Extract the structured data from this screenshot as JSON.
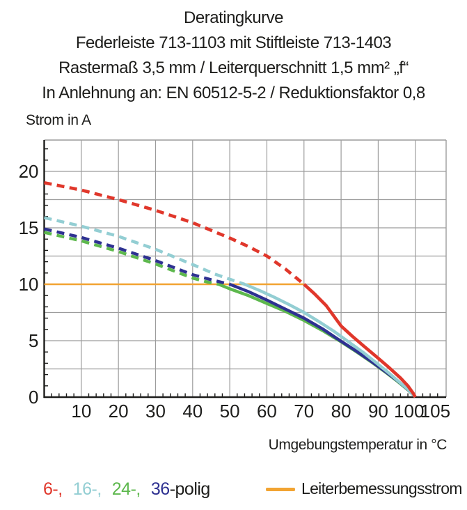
{
  "title": {
    "line1": "Deratingkurve",
    "line2": "Federleiste 713-1103 mit Stiftleiste 713-1403",
    "line3": "Rastermaß 3,5 mm / Leiterquerschnitt 1,5 mm² „f“",
    "line4": "In Anlehnung an: EN 60512-5-2 / Reduktionsfaktor 0,8"
  },
  "axes": {
    "y_caption": "Strom in A",
    "x_caption": "Umgebungstemperatur in °C"
  },
  "legend": {
    "items": [
      {
        "label": "6-,",
        "color": "#e0372b"
      },
      {
        "label": "16-,",
        "color": "#93ced3"
      },
      {
        "label": "24-,",
        "color": "#5db84d"
      },
      {
        "label": "36",
        "color": "#2e3191"
      }
    ],
    "suffix": "-polig",
    "line_label": "Leiterbemessungsstrom",
    "line_color": "#f2a432"
  },
  "colors": {
    "grid": "#9c9c9c",
    "axis": "#1d1d1b",
    "text": "#1d1d1b"
  },
  "chart_data": {
    "type": "line",
    "title": "Deratingkurve",
    "xlabel": "Umgebungstemperatur in °C",
    "ylabel": "Strom in A",
    "xlim": [
      0,
      108.3
    ],
    "ylim": [
      0,
      22.78
    ],
    "x_grid_step": 10,
    "y_grid_step": 2.5,
    "x_ticks": [
      {
        "v": 10
      },
      {
        "v": 20
      },
      {
        "v": 30
      },
      {
        "v": 40
      },
      {
        "v": 50
      },
      {
        "v": 60
      },
      {
        "v": 70
      },
      {
        "v": 80
      },
      {
        "v": 90
      },
      {
        "v": 100,
        "dx": -9
      },
      {
        "v": 105,
        "dx": 2
      }
    ],
    "y_ticks": [
      0,
      5,
      10,
      15,
      20
    ],
    "legend_position": "bottom",
    "series": [
      {
        "name": "Leiterbemessungsstrom",
        "color": "#f2a432",
        "width": 2.6,
        "dash_until": null,
        "points": [
          [
            0,
            10
          ],
          [
            70,
            10
          ]
        ]
      },
      {
        "name": "24-polig",
        "color": "#5db84d",
        "width": 4.4,
        "dash_until": 47,
        "points": [
          [
            0,
            14.6
          ],
          [
            10,
            13.85
          ],
          [
            20,
            12.9
          ],
          [
            30,
            11.8
          ],
          [
            40,
            10.55
          ],
          [
            44,
            10.2
          ],
          [
            47,
            10
          ],
          [
            50,
            9.6
          ],
          [
            55,
            9.0
          ],
          [
            60,
            8.3
          ],
          [
            65,
            7.6
          ],
          [
            70,
            6.8
          ],
          [
            75,
            5.9
          ],
          [
            80,
            4.9
          ],
          [
            84,
            4.05
          ],
          [
            88,
            3.15
          ],
          [
            92,
            2.2
          ],
          [
            95,
            1.45
          ],
          [
            98,
            0.65
          ],
          [
            99.5,
            0.2
          ],
          [
            100,
            0
          ]
        ]
      },
      {
        "name": "36-polig",
        "color": "#2e3191",
        "width": 4.4,
        "dash_until": 50,
        "points": [
          [
            0,
            14.9
          ],
          [
            10,
            14.15
          ],
          [
            20,
            13.2
          ],
          [
            30,
            12.1
          ],
          [
            40,
            10.85
          ],
          [
            45,
            10.4
          ],
          [
            50,
            10
          ],
          [
            55,
            9.35
          ],
          [
            60,
            8.6
          ],
          [
            65,
            7.8
          ],
          [
            70,
            7.0
          ],
          [
            75,
            6.05
          ],
          [
            80,
            4.95
          ],
          [
            84,
            4.1
          ],
          [
            88,
            3.2
          ],
          [
            92,
            2.25
          ],
          [
            95,
            1.5
          ],
          [
            98,
            0.68
          ],
          [
            99.5,
            0.2
          ],
          [
            100,
            0
          ]
        ]
      },
      {
        "name": "16-polig",
        "color": "#93ced3",
        "width": 4.4,
        "dash_until": 54,
        "points": [
          [
            0,
            15.9
          ],
          [
            10,
            15.15
          ],
          [
            20,
            14.25
          ],
          [
            30,
            13.1
          ],
          [
            40,
            11.75
          ],
          [
            46,
            10.9
          ],
          [
            50,
            10.45
          ],
          [
            54,
            10
          ],
          [
            58,
            9.45
          ],
          [
            62,
            8.85
          ],
          [
            66,
            8.2
          ],
          [
            70,
            7.5
          ],
          [
            74,
            6.7
          ],
          [
            78,
            5.85
          ],
          [
            82,
            4.9
          ],
          [
            86,
            3.95
          ],
          [
            90,
            2.9
          ],
          [
            93,
            2.1
          ],
          [
            96,
            1.25
          ],
          [
            98,
            0.7
          ],
          [
            99.5,
            0.2
          ],
          [
            100,
            0
          ]
        ]
      },
      {
        "name": "6-polig",
        "color": "#e0372b",
        "width": 4.6,
        "dash_until": 70,
        "points": [
          [
            0,
            19
          ],
          [
            10,
            18.35
          ],
          [
            20,
            17.5
          ],
          [
            30,
            16.55
          ],
          [
            40,
            15.45
          ],
          [
            50,
            14.1
          ],
          [
            55,
            13.35
          ],
          [
            60,
            12.5
          ],
          [
            65,
            11.35
          ],
          [
            70,
            10
          ],
          [
            73,
            9.1
          ],
          [
            76,
            8.1
          ],
          [
            80,
            6.3
          ],
          [
            83,
            5.4
          ],
          [
            86,
            4.55
          ],
          [
            90,
            3.45
          ],
          [
            93,
            2.6
          ],
          [
            96,
            1.7
          ],
          [
            98,
            1.0
          ],
          [
            99.5,
            0.3
          ],
          [
            100,
            0
          ]
        ]
      }
    ]
  }
}
